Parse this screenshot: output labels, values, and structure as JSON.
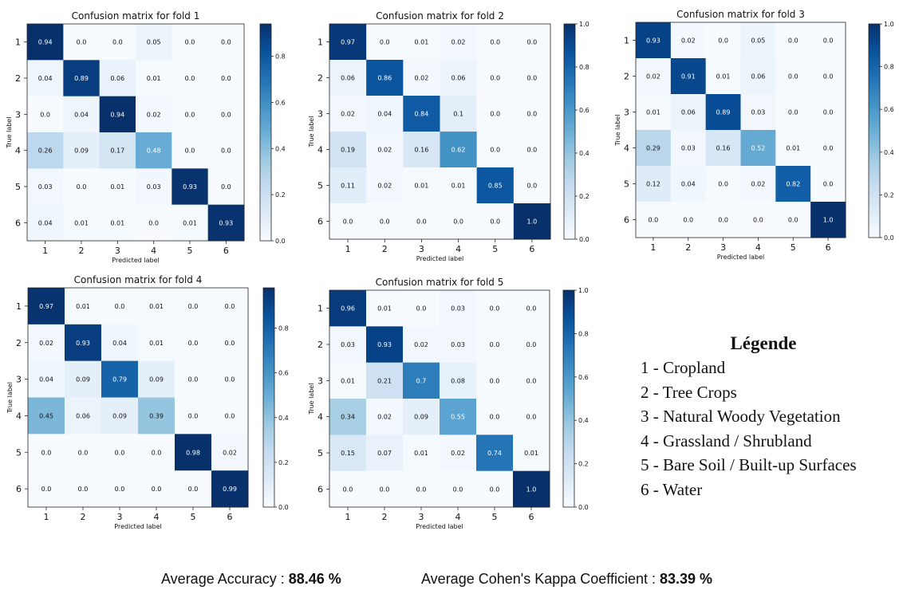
{
  "chart_data": [
    {
      "type": "heatmap",
      "title": "Confusion matrix for fold 1",
      "xlabel": "Predicted label",
      "ylabel": "True label",
      "categories": [
        "1",
        "2",
        "3",
        "4",
        "5",
        "6"
      ],
      "values": [
        [
          "0.94",
          "0.0",
          "0.0",
          "0.05",
          "0.0",
          "0.0"
        ],
        [
          "0.04",
          "0.89",
          "0.06",
          "0.01",
          "0.0",
          "0.0"
        ],
        [
          "0.0",
          "0.04",
          "0.94",
          "0.02",
          "0.0",
          "0.0"
        ],
        [
          "0.26",
          "0.09",
          "0.17",
          "0.48",
          "0.0",
          "0.0"
        ],
        [
          "0.03",
          "0.0",
          "0.01",
          "0.03",
          "0.93",
          "0.0"
        ],
        [
          "0.04",
          "0.01",
          "0.01",
          "0.0",
          "0.01",
          "0.93"
        ]
      ],
      "colorbar_ticks": [
        "0.0",
        "0.2",
        "0.4",
        "0.6",
        "0.8"
      ],
      "colorbar_range": [
        0,
        0.94
      ]
    },
    {
      "type": "heatmap",
      "title": "Confusion matrix for fold 2",
      "xlabel": "Predicted label",
      "ylabel": "True label",
      "categories": [
        "1",
        "2",
        "3",
        "4",
        "5",
        "6"
      ],
      "values": [
        [
          "0.97",
          "0.0",
          "0.01",
          "0.02",
          "0.0",
          "0.0"
        ],
        [
          "0.06",
          "0.86",
          "0.02",
          "0.06",
          "0.0",
          "0.0"
        ],
        [
          "0.02",
          "0.04",
          "0.84",
          "0.1",
          "0.0",
          "0.0"
        ],
        [
          "0.19",
          "0.02",
          "0.16",
          "0.62",
          "0.0",
          "0.0"
        ],
        [
          "0.11",
          "0.02",
          "0.01",
          "0.01",
          "0.85",
          "0.0"
        ],
        [
          "0.0",
          "0.0",
          "0.0",
          "0.0",
          "0.0",
          "1.0"
        ]
      ],
      "colorbar_ticks": [
        "0.0",
        "0.2",
        "0.4",
        "0.6",
        "0.8",
        "1.0"
      ],
      "colorbar_range": [
        0,
        1.0
      ]
    },
    {
      "type": "heatmap",
      "title": "Confusion matrix for fold 3",
      "xlabel": "Predicted label",
      "ylabel": "True label",
      "categories": [
        "1",
        "2",
        "3",
        "4",
        "5",
        "6"
      ],
      "values": [
        [
          "0.93",
          "0.02",
          "0.0",
          "0.05",
          "0.0",
          "0.0"
        ],
        [
          "0.02",
          "0.91",
          "0.01",
          "0.06",
          "0.0",
          "0.0"
        ],
        [
          "0.01",
          "0.06",
          "0.89",
          "0.03",
          "0.0",
          "0.0"
        ],
        [
          "0.29",
          "0.03",
          "0.16",
          "0.52",
          "0.01",
          "0.0"
        ],
        [
          "0.12",
          "0.04",
          "0.0",
          "0.02",
          "0.82",
          "0.0"
        ],
        [
          "0.0",
          "0.0",
          "0.0",
          "0.0",
          "0.0",
          "1.0"
        ]
      ],
      "colorbar_ticks": [
        "0.0",
        "0.2",
        "0.4",
        "0.6",
        "0.8",
        "1.0"
      ],
      "colorbar_range": [
        0,
        1.0
      ]
    },
    {
      "type": "heatmap",
      "title": "Confusion matrix for fold 4",
      "xlabel": "Predicted label",
      "ylabel": "True label",
      "categories": [
        "1",
        "2",
        "3",
        "4",
        "5",
        "6"
      ],
      "values": [
        [
          "0.97",
          "0.01",
          "0.0",
          "0.01",
          "0.0",
          "0.0"
        ],
        [
          "0.02",
          "0.93",
          "0.04",
          "0.01",
          "0.0",
          "0.0"
        ],
        [
          "0.04",
          "0.09",
          "0.79",
          "0.09",
          "0.0",
          "0.0"
        ],
        [
          "0.45",
          "0.06",
          "0.09",
          "0.39",
          "0.0",
          "0.0"
        ],
        [
          "0.0",
          "0.0",
          "0.0",
          "0.0",
          "0.98",
          "0.02"
        ],
        [
          "0.0",
          "0.0",
          "0.0",
          "0.0",
          "0.0",
          "0.99"
        ]
      ],
      "colorbar_ticks": [
        "0.0",
        "0.2",
        "0.4",
        "0.6",
        "0.8"
      ],
      "colorbar_range": [
        0,
        0.98
      ]
    },
    {
      "type": "heatmap",
      "title": "Confusion matrix for fold 5",
      "xlabel": "Predicted label",
      "ylabel": "True label",
      "categories": [
        "1",
        "2",
        "3",
        "4",
        "5",
        "6"
      ],
      "values": [
        [
          "0.96",
          "0.01",
          "0.0",
          "0.03",
          "0.0",
          "0.0"
        ],
        [
          "0.03",
          "0.93",
          "0.02",
          "0.03",
          "0.0",
          "0.0"
        ],
        [
          "0.01",
          "0.21",
          "0.7",
          "0.08",
          "0.0",
          "0.0"
        ],
        [
          "0.34",
          "0.02",
          "0.09",
          "0.55",
          "0.0",
          "0.0"
        ],
        [
          "0.15",
          "0.07",
          "0.01",
          "0.02",
          "0.74",
          "0.01"
        ],
        [
          "0.0",
          "0.0",
          "0.0",
          "0.0",
          "0.0",
          "1.0"
        ]
      ],
      "colorbar_ticks": [
        "0.0",
        "0.2",
        "0.4",
        "0.6",
        "0.8",
        "1.0"
      ],
      "colorbar_range": [
        0,
        1.0
      ]
    }
  ],
  "colormap": "Blues",
  "colors": {
    "low": "#f7fbff",
    "high": "#08306b",
    "dark_text": "#111111",
    "light_text": "#ffffff"
  },
  "legend": {
    "title": "Légende",
    "items": [
      "1 - Cropland",
      "2 - Tree Crops",
      "3 - Natural Woody Vegetation",
      "4 - Grassland / Shrubland",
      "5 - Bare Soil / Built-up Surfaces",
      "6 - Water"
    ]
  },
  "summary": {
    "accuracy_label": "Average Accuracy : ",
    "accuracy_value": "88.46 %",
    "kappa_label": "Average Cohen's Kappa Coefficient : ",
    "kappa_value": "83.39 %"
  }
}
